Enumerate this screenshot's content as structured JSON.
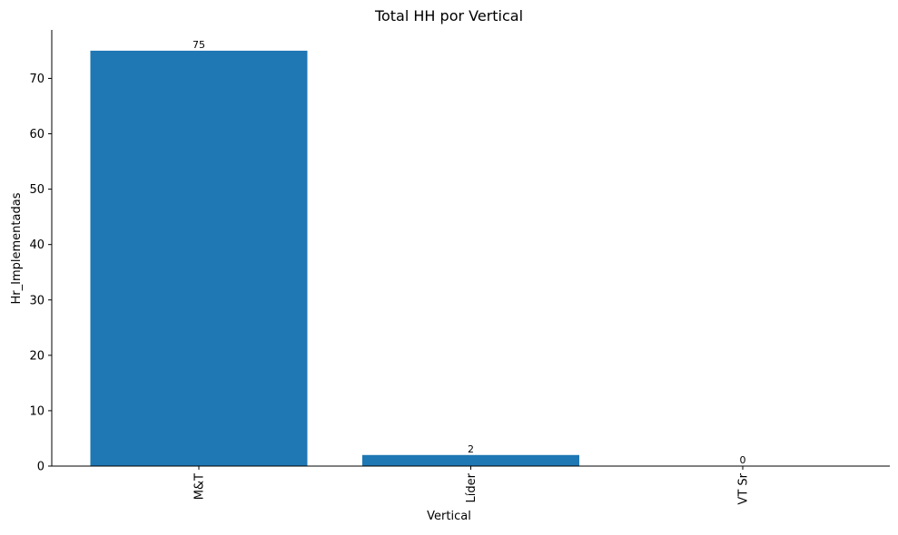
{
  "chart_data": {
    "type": "bar",
    "title": "Total HH por Vertical",
    "xlabel": "Vertical",
    "ylabel": "Hr_Implementadas",
    "categories": [
      "M&T",
      "Líder",
      "VT Sr"
    ],
    "values": [
      75,
      2,
      0
    ],
    "data_labels": [
      "75",
      "2",
      "0"
    ],
    "ylim": [
      0,
      78.75
    ],
    "yticks": [
      0,
      10,
      20,
      30,
      40,
      50,
      60,
      70
    ],
    "bar_color": "#1f77b4",
    "grid": false,
    "legend": "none"
  }
}
